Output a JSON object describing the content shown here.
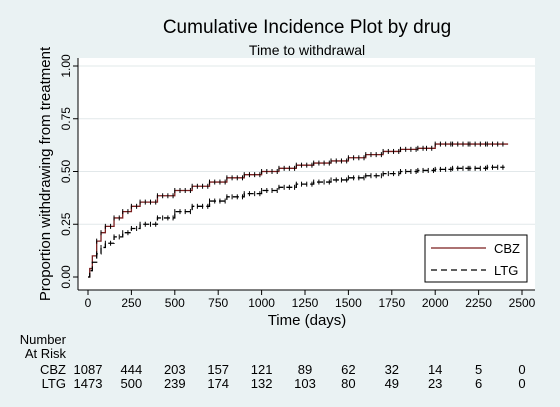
{
  "chart_data": {
    "type": "line",
    "title": "Cumulative Incidence Plot by drug",
    "subtitle": "Time to withdrawal",
    "xlabel": "Time (days)",
    "ylabel": "Proportion withdrawing from treatment",
    "xlim": [
      0,
      2500
    ],
    "ylim": [
      0,
      1
    ],
    "x_ticks": [
      "0",
      "250",
      "500",
      "750",
      "1000",
      "1250",
      "1500",
      "1750",
      "2000",
      "2250",
      "2500"
    ],
    "y_ticks": [
      "0.00",
      "0.25",
      "0.50",
      "0.75",
      "1.00"
    ],
    "y_tick_values": [
      0,
      0.25,
      0.5,
      0.75,
      1.0
    ],
    "grid": true,
    "legend_position": "bottom-right",
    "series": [
      {
        "name": "CBZ",
        "color": "#7a1f1f",
        "dash": "solid",
        "x": [
          0,
          10,
          25,
          50,
          75,
          100,
          150,
          200,
          250,
          300,
          400,
          500,
          600,
          700,
          800,
          900,
          1000,
          1100,
          1200,
          1300,
          1400,
          1500,
          1600,
          1700,
          1800,
          1900,
          1950,
          2000,
          2100,
          2200,
          2300,
          2420
        ],
        "y": [
          0,
          0.04,
          0.1,
          0.17,
          0.21,
          0.24,
          0.28,
          0.31,
          0.335,
          0.355,
          0.385,
          0.41,
          0.43,
          0.45,
          0.47,
          0.485,
          0.5,
          0.515,
          0.53,
          0.54,
          0.55,
          0.565,
          0.58,
          0.595,
          0.605,
          0.61,
          0.61,
          0.63,
          0.63,
          0.63,
          0.63,
          0.63
        ]
      },
      {
        "name": "LTG",
        "color": "#000000",
        "dash": "dashed",
        "x": [
          0,
          10,
          25,
          50,
          75,
          100,
          150,
          200,
          250,
          300,
          400,
          500,
          600,
          700,
          800,
          900,
          1000,
          1100,
          1200,
          1300,
          1400,
          1500,
          1600,
          1700,
          1800,
          1900,
          2000,
          2100,
          2200,
          2300,
          2400
        ],
        "y": [
          0,
          0.03,
          0.07,
          0.11,
          0.14,
          0.16,
          0.19,
          0.21,
          0.23,
          0.25,
          0.28,
          0.31,
          0.335,
          0.36,
          0.38,
          0.395,
          0.41,
          0.425,
          0.44,
          0.45,
          0.46,
          0.47,
          0.48,
          0.49,
          0.5,
          0.505,
          0.51,
          0.515,
          0.515,
          0.52,
          0.52
        ]
      }
    ],
    "at_risk": {
      "header_line1": "Number",
      "header_line2": "At Risk",
      "times": [
        0,
        250,
        500,
        750,
        1000,
        1250,
        1500,
        1750,
        2000,
        2250,
        2500
      ],
      "rows": [
        {
          "label": "CBZ",
          "values": [
            "1087",
            "444",
            "203",
            "157",
            "121",
            "89",
            "62",
            "32",
            "14",
            "5",
            "0"
          ]
        },
        {
          "label": "LTG",
          "values": [
            "1473",
            "500",
            "239",
            "174",
            "132",
            "103",
            "80",
            "49",
            "23",
            "6",
            "0"
          ]
        }
      ]
    }
  }
}
